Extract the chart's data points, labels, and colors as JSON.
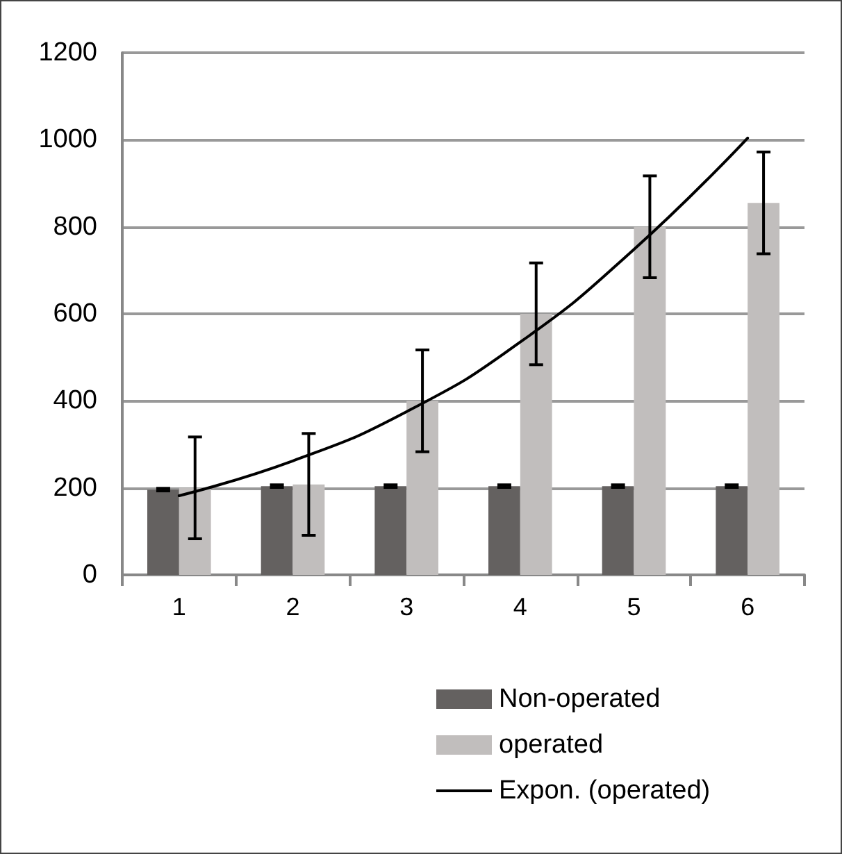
{
  "chart_data": {
    "type": "bar",
    "categories": [
      "1",
      "2",
      "3",
      "4",
      "5",
      "6"
    ],
    "series": [
      {
        "name": "Non-operated",
        "color": "#646160",
        "values": [
          196,
          204,
          204,
          204,
          204,
          204
        ],
        "errors": [
          3,
          3,
          3,
          3,
          3,
          3
        ]
      },
      {
        "name": "operated",
        "color": "#c1bebd",
        "values": [
          200,
          208,
          400,
          600,
          800,
          855
        ],
        "errors": [
          117,
          117,
          117,
          117,
          117,
          117
        ]
      },
      {
        "name": "Expon. (operated)",
        "type": "line",
        "color": "#000000",
        "values": [
          182,
          262,
          375,
          535,
          748,
          1004
        ],
        "marker": "none",
        "line_style": "solid"
      }
    ],
    "ylim": [
      0,
      1200
    ],
    "yticks": [
      0,
      200,
      400,
      600,
      800,
      1000,
      1200
    ],
    "grid": "y",
    "legend": "bottom right"
  }
}
